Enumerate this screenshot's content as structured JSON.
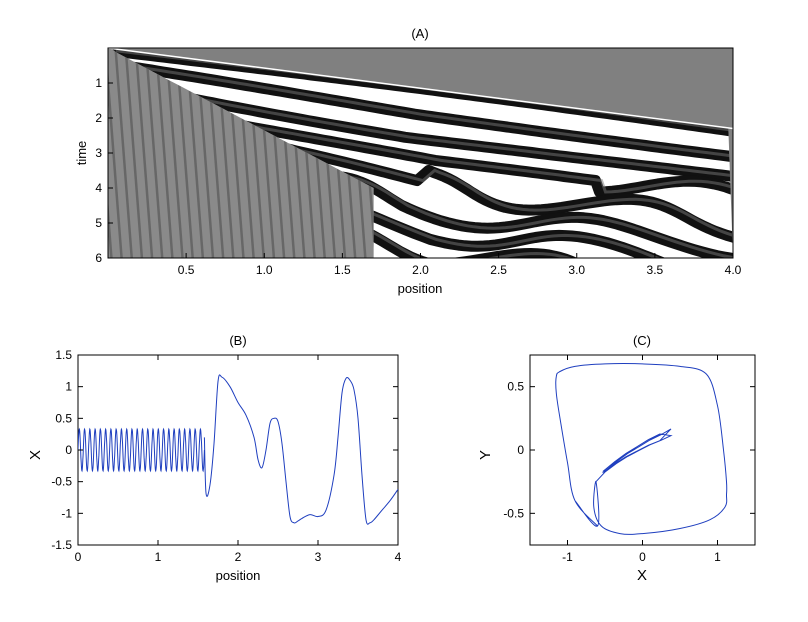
{
  "chart_data": [
    {
      "panel": "(A)",
      "type": "heatmap",
      "title": "(A)",
      "xlabel": "position",
      "ylabel": "time",
      "xlim": [
        0,
        4
      ],
      "ylim": [
        0,
        6
      ],
      "y_reversed": true,
      "xticks": [
        0.5,
        1.0,
        1.5,
        2.0,
        2.5,
        3.0,
        3.5,
        4.0
      ],
      "xtick_labels": [
        "0.5",
        "1.0",
        "1.5",
        "2.0",
        "2.5",
        "3.0",
        "3.5",
        "4.0"
      ],
      "yticks": [
        1,
        2,
        3,
        4,
        5,
        6
      ],
      "ytick_labels": [
        "1",
        "2",
        "3",
        "4",
        "5",
        "6"
      ],
      "colormap": "gray",
      "background_color": "#808080",
      "front_line": {
        "x": [
          0,
          4
        ],
        "t": [
          0,
          2.3
        ]
      },
      "fine_region_boundary": {
        "x": [
          0,
          1.7
        ],
        "t": [
          0,
          4.0
        ]
      },
      "fine_oscillation_period": 0.065,
      "coarse_region_start_t": 4.0,
      "band_count": 8
    },
    {
      "panel": "(B)",
      "type": "line",
      "title": "(B)",
      "xlabel": "position",
      "ylabel": "X",
      "xlim": [
        0,
        4
      ],
      "ylim": [
        -1.5,
        1.5
      ],
      "xticks": [
        0,
        1,
        2,
        3,
        4
      ],
      "xtick_labels": [
        "0",
        "1",
        "2",
        "3",
        "4"
      ],
      "yticks": [
        -1.5,
        -1,
        -0.5,
        0,
        0.5,
        1,
        1.5
      ],
      "ytick_labels": [
        "-1.5",
        "-1",
        "-0.5",
        "0",
        "0.5",
        "1",
        "1.5"
      ],
      "line_color": "#1f3fbf",
      "oscillation": {
        "x_start": 0.0,
        "x_end": 1.58,
        "amplitude": 0.33,
        "cycles": 24
      },
      "series": [
        {
          "x": [
            1.58,
            1.6,
            1.65,
            1.7,
            1.75,
            1.8,
            1.9,
            2.0,
            2.1,
            2.2,
            2.25,
            2.3,
            2.35,
            2.4,
            2.45,
            2.5,
            2.55,
            2.6,
            2.65,
            2.7,
            2.75,
            2.8,
            2.9,
            3.0,
            3.1,
            3.2,
            3.25,
            3.3,
            3.35,
            3.4,
            3.45,
            3.5,
            3.55,
            3.6,
            3.65,
            3.7,
            3.8,
            3.9,
            4.0
          ],
          "y": [
            0.2,
            -0.68,
            -0.55,
            0.1,
            1.08,
            1.15,
            1.0,
            0.75,
            0.55,
            0.2,
            -0.15,
            -0.28,
            0.0,
            0.42,
            0.5,
            0.45,
            0.1,
            -0.5,
            -1.05,
            -1.15,
            -1.12,
            -1.08,
            -1.02,
            -1.05,
            -0.95,
            -0.4,
            0.2,
            0.9,
            1.13,
            1.1,
            0.95,
            0.5,
            -0.4,
            -1.1,
            -1.15,
            -1.1,
            -0.95,
            -0.8,
            -0.62
          ]
        }
      ]
    },
    {
      "panel": "(C)",
      "type": "line",
      "title": "(C)",
      "xlabel": "X",
      "ylabel": "Y",
      "xlim": [
        -1.5,
        1.5
      ],
      "ylim": [
        -0.75,
        0.75
      ],
      "xticks": [
        -1,
        0,
        1
      ],
      "xtick_labels": [
        "-1",
        "0",
        "1"
      ],
      "yticks": [
        -0.5,
        0,
        0.5
      ],
      "ytick_labels": [
        "-0.5",
        "0",
        "0.5"
      ],
      "line_color": "#1f3fbf",
      "limit_cycle": {
        "x": [
          -0.6,
          -0.9,
          -1.0,
          -1.1,
          -1.15,
          -1.15,
          -1.1,
          -0.9,
          -0.5,
          0.0,
          0.5,
          0.85,
          1.0,
          1.08,
          1.12,
          1.12,
          1.1,
          0.9,
          0.5,
          0.0,
          -0.3,
          -0.55,
          -0.65,
          -0.62
        ],
        "y": [
          -0.6,
          -0.4,
          -0.1,
          0.25,
          0.45,
          0.58,
          0.62,
          0.66,
          0.68,
          0.68,
          0.66,
          0.6,
          0.35,
          0.0,
          -0.25,
          -0.35,
          -0.45,
          -0.55,
          -0.62,
          -0.66,
          -0.66,
          -0.6,
          -0.45,
          -0.25
        ]
      },
      "inner_trajectory": {
        "x": [
          -0.62,
          -0.5,
          -0.35,
          -0.2,
          -0.05,
          0.1,
          0.25,
          0.38
        ],
        "y": [
          -0.25,
          -0.17,
          -0.1,
          -0.04,
          0.01,
          0.06,
          0.1,
          0.14
        ]
      }
    }
  ]
}
